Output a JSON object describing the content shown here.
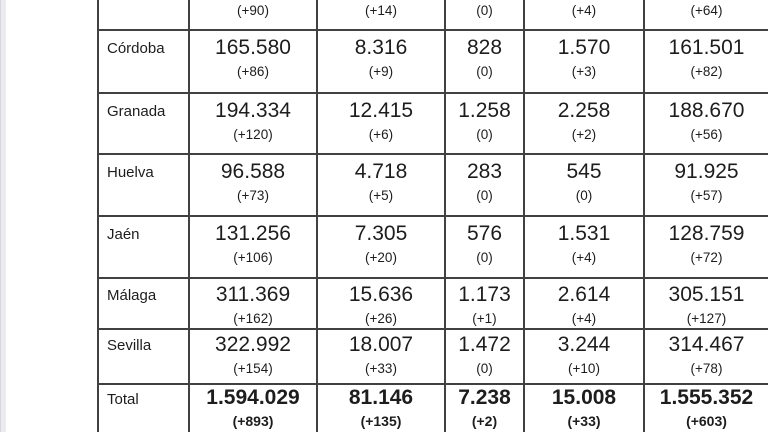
{
  "table": {
    "rows": [
      {
        "province": "",
        "values": [
          "",
          "",
          "",
          "",
          ""
        ],
        "deltas": [
          "(+90)",
          "(+14)",
          "(0)",
          "(+4)",
          "(+64)"
        ]
      },
      {
        "province": "Córdoba",
        "values": [
          "165.580",
          "8.316",
          "828",
          "1.570",
          "161.501"
        ],
        "deltas": [
          "(+86)",
          "(+9)",
          "(0)",
          "(+3)",
          "(+82)"
        ]
      },
      {
        "province": "Granada",
        "values": [
          "194.334",
          "12.415",
          "1.258",
          "2.258",
          "188.670"
        ],
        "deltas": [
          "(+120)",
          "(+6)",
          "(0)",
          "(+2)",
          "(+56)"
        ]
      },
      {
        "province": "Huelva",
        "values": [
          "96.588",
          "4.718",
          "283",
          "545",
          "91.925"
        ],
        "deltas": [
          "(+73)",
          "(+5)",
          "(0)",
          "(0)",
          "(+57)"
        ]
      },
      {
        "province": "Jaén",
        "values": [
          "131.256",
          "7.305",
          "576",
          "1.531",
          "128.759"
        ],
        "deltas": [
          "(+106)",
          "(+20)",
          "(0)",
          "(+4)",
          "(+72)"
        ]
      },
      {
        "province": "Málaga",
        "values": [
          "311.369",
          "15.636",
          "1.173",
          "2.614",
          "305.151"
        ],
        "deltas": [
          "(+162)",
          "(+26)",
          "(+1)",
          "(+4)",
          "(+127)"
        ]
      },
      {
        "province": "Sevilla",
        "values": [
          "322.992",
          "18.007",
          "1.472",
          "3.244",
          "314.467"
        ],
        "deltas": [
          "(+154)",
          "(+33)",
          "(0)",
          "(+10)",
          "(+78)"
        ]
      },
      {
        "province": "Total",
        "values": [
          "1.594.029",
          "81.146",
          "7.238",
          "15.008",
          "1.555.352"
        ],
        "deltas": [
          "(+893)",
          "(+135)",
          "(+2)",
          "(+33)",
          "(+603)"
        ]
      }
    ]
  },
  "colors": {
    "border": "#414141",
    "text": "#1d1d1d",
    "background": "#ffffff",
    "edge_strip": "#ebebf0"
  }
}
